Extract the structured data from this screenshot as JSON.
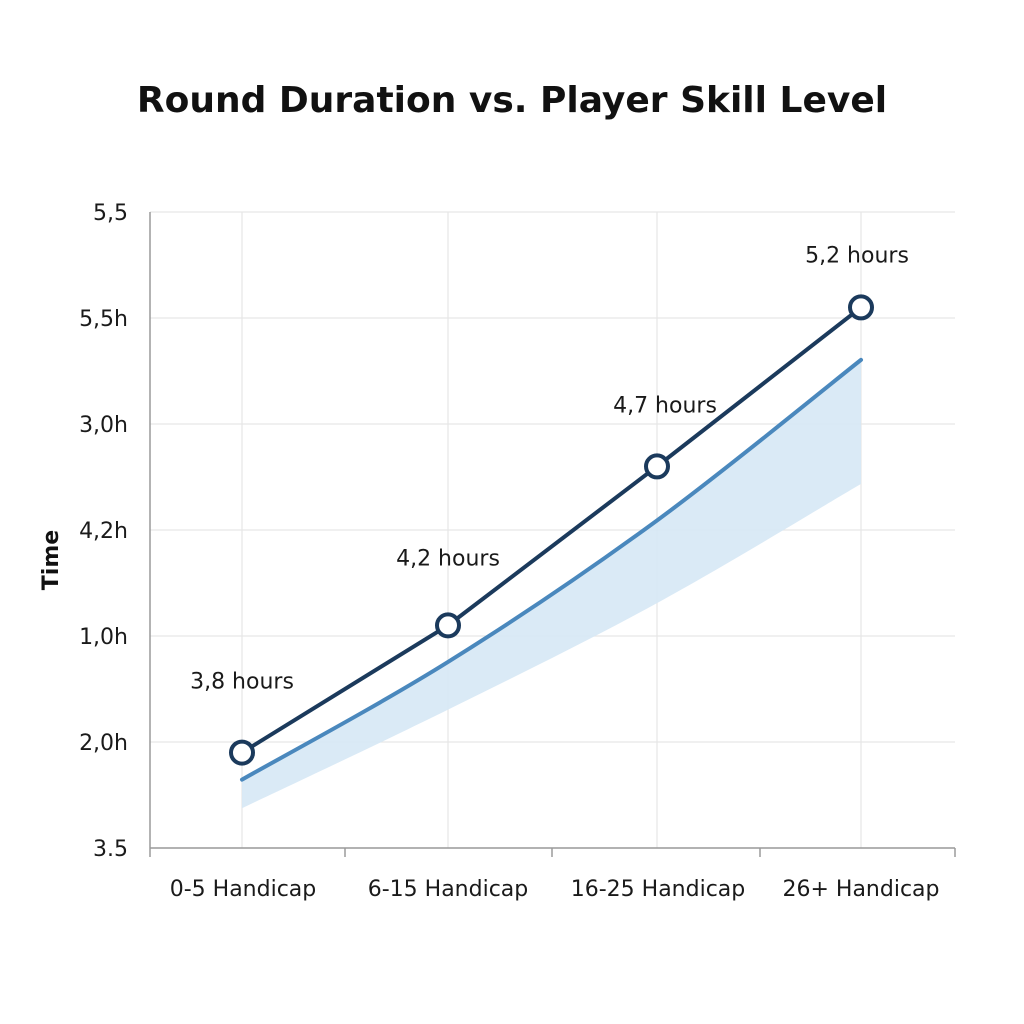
{
  "chart_data": {
    "type": "line",
    "title": "Round Duration vs. Player Skill Level",
    "xlabel": "",
    "ylabel": "Time",
    "categories": [
      "0-5 Handicap",
      "6-15 Handicap",
      "16-25 Handicap",
      "26+ Handicap"
    ],
    "y_tick_labels": [
      "5,5",
      "5,5h",
      "3,0h",
      "4,2h",
      "1,0h",
      "2,0h",
      "3.5"
    ],
    "grid": true,
    "series": [
      {
        "values": [
          3.8,
          4.2,
          4.7,
          5.2
        ],
        "data_labels": [
          "3,8 hours",
          "4,2 hours",
          "4,7 hours",
          "5,2 hours"
        ],
        "color": "#1b3a5c",
        "markers": true
      },
      {
        "values": [
          3.715,
          4.085,
          4.53,
          5.035
        ],
        "color": "#4a88bd",
        "band_lower": [
          3.625,
          3.935,
          4.27,
          4.645
        ],
        "band_color": "#d6e8f5"
      }
    ]
  }
}
